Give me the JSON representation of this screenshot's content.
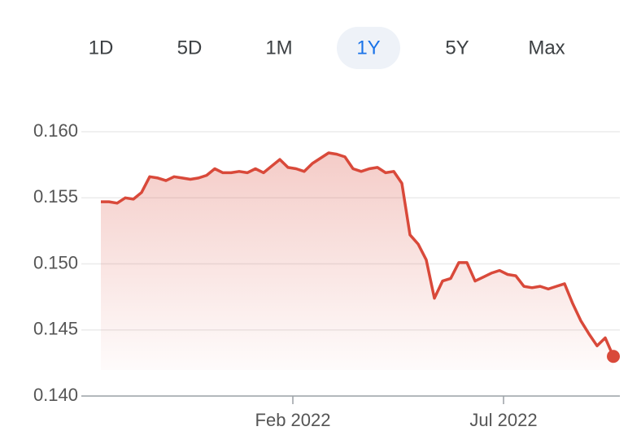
{
  "range_tabs": [
    {
      "label": "1D"
    },
    {
      "label": "5D"
    },
    {
      "label": "1M"
    },
    {
      "label": "1Y",
      "selected": true
    },
    {
      "label": "5Y"
    },
    {
      "label": "Max"
    }
  ],
  "chart_data": {
    "type": "line",
    "color": "#d9493a",
    "values": [
      0.1547,
      0.1547,
      0.1546,
      0.155,
      0.1549,
      0.1554,
      0.1566,
      0.1565,
      0.1563,
      0.1566,
      0.1565,
      0.1564,
      0.1565,
      0.1567,
      0.1572,
      0.1569,
      0.1569,
      0.157,
      0.1569,
      0.1572,
      0.1569,
      0.1574,
      0.1579,
      0.1573,
      0.1572,
      0.157,
      0.1576,
      0.158,
      0.1584,
      0.1583,
      0.1581,
      0.1572,
      0.157,
      0.1572,
      0.1573,
      0.1569,
      0.157,
      0.1561,
      0.1522,
      0.1515,
      0.1503,
      0.1474,
      0.1487,
      0.1489,
      0.1501,
      0.1501,
      0.1487,
      0.149,
      0.1493,
      0.1495,
      0.1492,
      0.1491,
      0.1483,
      0.1482,
      0.1483,
      0.1481,
      0.1483,
      0.1485,
      0.147,
      0.1457,
      0.1447,
      0.1438,
      0.1444,
      0.143
    ],
    "xlim": [
      -2.4,
      63.8
    ],
    "xticks": [
      {
        "value": 23.6,
        "label": "Feb 2022"
      },
      {
        "value": 49.5,
        "label": "Jul 2022"
      }
    ],
    "ylim": [
      0.14,
      0.16
    ],
    "yticks": [
      {
        "value": 0.14,
        "label": "0.140"
      },
      0.145,
      {
        "value": 0.15,
        "label": "0.150"
      },
      0.155,
      {
        "value": 0.16,
        "label": "0.160"
      }
    ],
    "grid": true
  }
}
